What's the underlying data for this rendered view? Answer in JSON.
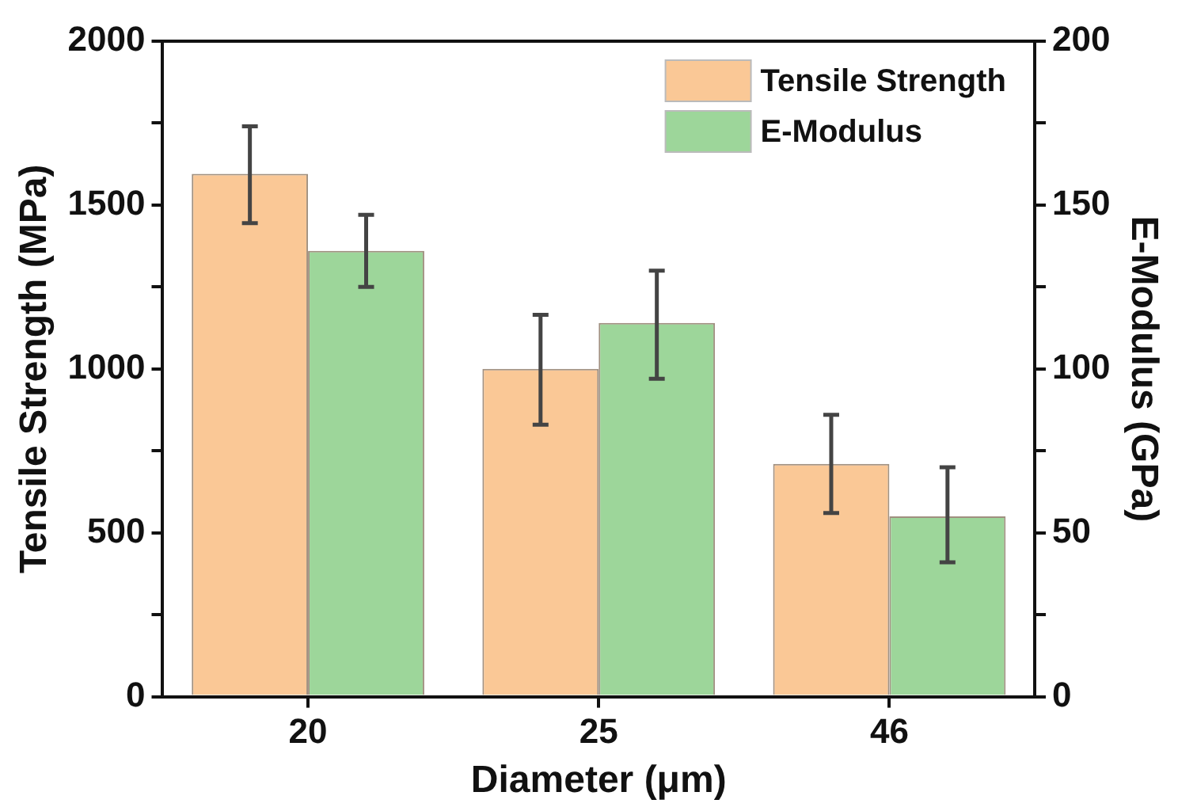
{
  "chart_data": {
    "type": "bar",
    "xlabel": "Diameter (μm)",
    "ylabel": "Tensile Strength (MPa)",
    "y2label": "E-Modulus (GPa)",
    "categories": [
      "20",
      "25",
      "46"
    ],
    "series": [
      {
        "name": "Tensile Strength",
        "color": "#fac896",
        "values": [
          1595,
          1000,
          710
        ],
        "errors": [
          [
            1445,
            1740
          ],
          [
            830,
            1165
          ],
          [
            560,
            860
          ]
        ]
      },
      {
        "name": "E-Modulus",
        "color": "#9dd69a",
        "values": [
          136,
          114,
          55
        ],
        "errors": [
          [
            125,
            147
          ],
          [
            97,
            130
          ],
          [
            41,
            70
          ]
        ],
        "axis": "y2"
      }
    ],
    "ylim": [
      0,
      2000
    ],
    "yticks": [
      0,
      {
        "value": 250,
        "label": null
      },
      500,
      {
        "value": 750,
        "label": null
      },
      1000,
      {
        "value": 1250,
        "label": null
      },
      1500,
      {
        "value": 1750,
        "label": null
      },
      2000
    ],
    "y2lim": [
      0,
      200
    ],
    "y2ticks": [
      0,
      {
        "value": 25,
        "label": null
      },
      50,
      {
        "value": 75,
        "label": null
      },
      100,
      {
        "value": 125,
        "label": null
      },
      150,
      {
        "value": 175,
        "label": null
      },
      200
    ],
    "grid": false,
    "legend": "top right"
  }
}
